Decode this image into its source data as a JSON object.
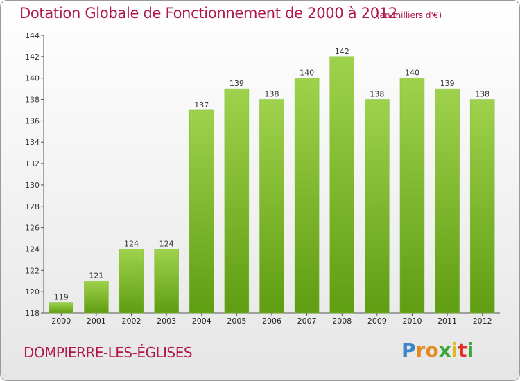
{
  "header": {
    "title": "Dotation Globale de Fonctionnement de 2000 à 2012",
    "unit": "(en milliers d'€)"
  },
  "footer": {
    "commune": "DOMPIERRE-LES-ÉGLISES",
    "brand": "Proxiti"
  },
  "colors": {
    "title": "#b0174a",
    "bar_top": "#9fd24c",
    "bar_bottom": "#5f9d12",
    "brand_letters": [
      "#3a86c8",
      "#e58a1f",
      "#e58a1f",
      "#3aa63a",
      "#e0b91a",
      "#e2332a",
      "#3aa63a"
    ]
  },
  "chart_data": {
    "type": "bar",
    "title": "Dotation Globale de Fonctionnement de 2000 à 2012",
    "xlabel": "",
    "ylabel": "",
    "ylim": [
      118,
      144
    ],
    "yticks": [
      118,
      120,
      122,
      124,
      126,
      128,
      130,
      132,
      134,
      136,
      138,
      140,
      142,
      144
    ],
    "grid": false,
    "categories": [
      "2000",
      "2001",
      "2002",
      "2003",
      "2004",
      "2005",
      "2006",
      "2007",
      "2008",
      "2009",
      "2010",
      "2011",
      "2012"
    ],
    "values": [
      119,
      121,
      124,
      124,
      137,
      139,
      138,
      140,
      142,
      138,
      140,
      139,
      138
    ]
  }
}
